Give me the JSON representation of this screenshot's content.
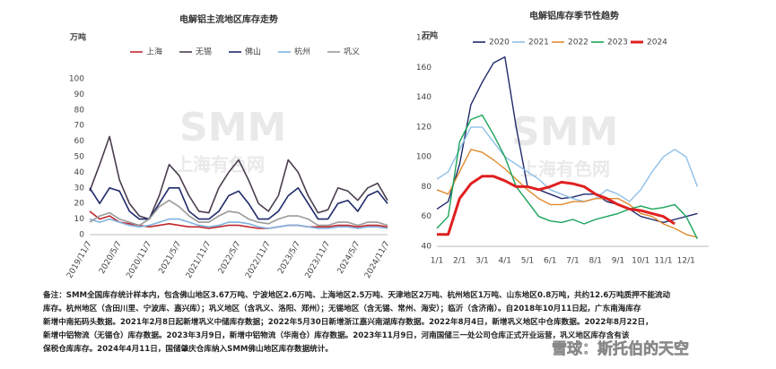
{
  "chart_data": [
    {
      "type": "line",
      "title": "电解铝主流地区库存走势",
      "y_label": "万吨",
      "categories": [
        "2019/11/7",
        null,
        null,
        "2020/5/7",
        null,
        null,
        "2020/11/7",
        null,
        null,
        "2021/5/7",
        null,
        null,
        "2021/11/7",
        null,
        null,
        "2022/5/7",
        null,
        null,
        "2022/11/7",
        null,
        null,
        "2023/5/7",
        null,
        null,
        "2023/11/7",
        null,
        null,
        "2024/5/7",
        null,
        null,
        "2024/11/7"
      ],
      "series": [
        {
          "name": "上海",
          "color": "#c0282d",
          "values": [
            15,
            10,
            12,
            8,
            7,
            6,
            5,
            6,
            7,
            6,
            5,
            5,
            4,
            5,
            6,
            6,
            5,
            4,
            4,
            5,
            6,
            6,
            5,
            5,
            5,
            6,
            6,
            5,
            6,
            6,
            5
          ]
        },
        {
          "name": "无锡",
          "color": "#4a3e4e",
          "values": [
            28,
            45,
            63,
            35,
            20,
            12,
            10,
            25,
            45,
            38,
            25,
            15,
            14,
            30,
            40,
            48,
            35,
            20,
            15,
            25,
            48,
            40,
            25,
            14,
            16,
            30,
            28,
            22,
            30,
            33,
            22
          ]
        },
        {
          "name": "佛山",
          "color": "#1f2a6b",
          "values": [
            30,
            20,
            30,
            28,
            15,
            10,
            10,
            20,
            30,
            30,
            15,
            10,
            10,
            15,
            25,
            28,
            20,
            10,
            10,
            15,
            25,
            30,
            20,
            10,
            10,
            20,
            22,
            15,
            25,
            28,
            20
          ]
        },
        {
          "name": "杭州",
          "color": "#7fb2e0",
          "values": [
            10,
            8,
            10,
            8,
            6,
            5,
            6,
            8,
            10,
            10,
            8,
            6,
            5,
            6,
            8,
            8,
            7,
            5,
            4,
            5,
            6,
            6,
            5,
            4,
            4,
            5,
            5,
            4,
            5,
            5,
            4
          ]
        },
        {
          "name": "巩义",
          "color": "#9a9a9a",
          "values": [
            8,
            12,
            14,
            10,
            8,
            6,
            10,
            18,
            22,
            18,
            12,
            8,
            8,
            12,
            15,
            14,
            10,
            8,
            7,
            10,
            12,
            12,
            10,
            6,
            6,
            8,
            8,
            6,
            8,
            8,
            6
          ]
        }
      ],
      "ylim": [
        0,
        100
      ],
      "yticks": [
        0,
        10,
        20,
        30,
        40,
        50,
        60,
        70,
        80,
        90,
        100
      ]
    },
    {
      "type": "line",
      "title": "电解铝库存季节性趋势",
      "y_label": "万吨",
      "categories": [
        "1/1",
        null,
        "2/1",
        null,
        "3/1",
        null,
        "4/1",
        null,
        "5/1",
        null,
        "6/1",
        null,
        "7/1",
        null,
        "8/1",
        null,
        "9/1",
        null,
        "10/1",
        null,
        "11/1",
        null,
        "12/1",
        null
      ],
      "series": [
        {
          "name": "2020",
          "color": "#1f2a6b",
          "values": [
            65,
            70,
            95,
            135,
            150,
            163,
            167,
            120,
            80,
            78,
            75,
            72,
            73,
            75,
            75,
            70,
            68,
            65,
            60,
            58,
            56,
            58,
            60,
            62
          ]
        },
        {
          "name": "2021",
          "color": "#8fbfe8",
          "values": [
            85,
            90,
            105,
            120,
            120,
            110,
            100,
            95,
            90,
            85,
            78,
            75,
            72,
            70,
            72,
            78,
            75,
            70,
            78,
            90,
            100,
            105,
            100,
            80
          ]
        },
        {
          "name": "2022",
          "color": "#e08a2e",
          "values": [
            78,
            75,
            90,
            105,
            103,
            98,
            92,
            85,
            78,
            72,
            68,
            68,
            70,
            70,
            72,
            72,
            72,
            68,
            62,
            60,
            55,
            52,
            48,
            46
          ]
        },
        {
          "name": "2023",
          "color": "#1aa35a",
          "values": [
            52,
            60,
            110,
            125,
            128,
            115,
            100,
            80,
            70,
            60,
            57,
            56,
            58,
            55,
            58,
            60,
            62,
            65,
            67,
            65,
            66,
            68,
            60,
            45
          ]
        },
        {
          "name": "2024",
          "color": "#e02020",
          "values": [
            48,
            48,
            72,
            82,
            87,
            87,
            84,
            80,
            80,
            78,
            80,
            83,
            82,
            80,
            75,
            72,
            68,
            65,
            64,
            62,
            60,
            55,
            null,
            null
          ]
        }
      ],
      "ylim": [
        40,
        180
      ],
      "yticks": [
        40,
        60,
        80,
        100,
        120,
        140,
        160,
        180
      ]
    }
  ],
  "notes": [
    "备注：SMM全国库存统计样本内，包含佛山地区3.67万吨、宁波地区2.6万吨、上海地区2.5万吨、天津地区2万吨、杭州地区1万吨、山东地区0.8万吨，共约12.6万吨质押不能流动",
    "库存。杭州地区（含田川里、宁波库、嘉兴库）；巩义地区（含巩义、洛阳、郑州）；无锡地区（含无锡、常州、海安）；临沂（含济南）。自2018年10月11日起，广东南海库存",
    "新增中南拓码头数据。2021年2月8日起新增巩义中储库存数据；2022年5月30日新增浙江嘉兴南湖库存数据。2022年8月4日，新增巩义地区中仓库数据。2022年8月22日，",
    "新增中铝物流（无锡仓）库存数据。2023年3月9日，新增中铝物流（华南仓）库存数据。2023年11月9日，河南国储三一处公司仓库正式开业运营，巩义地区库存含有该",
    "保税仓库库存。2024年4月11日，国储肇庆仓库纳入SMM佛山地区库存数据统计。"
  ],
  "watermark": {
    "logo": "SMM",
    "name": "上海有色网",
    "source": "雪球：斯托伯的天空"
  }
}
